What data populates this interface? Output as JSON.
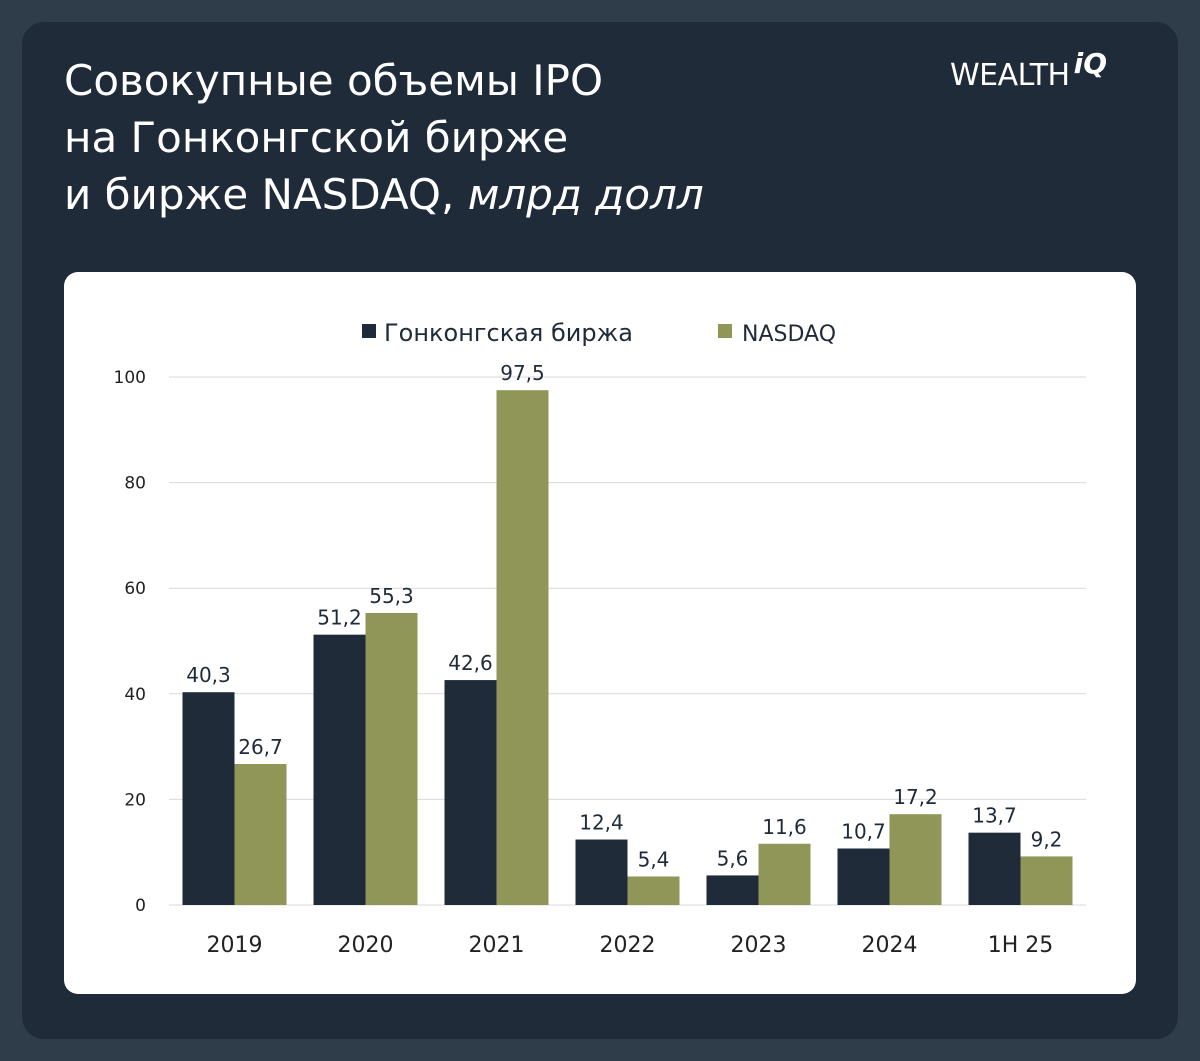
{
  "header": {
    "title_line1": "Совокупные объемы IPO",
    "title_line2": "на Гонконгской бирже",
    "title_line3_main": "и бирже NASDAQ, ",
    "title_line3_unit": "млрд долл",
    "logo_word": "WEALTH",
    "logo_mark": "iQ"
  },
  "colors": {
    "hk": "#1f2b38",
    "nasdaq": "#8f9657",
    "grid": "#d9d9d9"
  },
  "chart_data": {
    "type": "bar",
    "title": "Совокупные объемы IPO на Гонконгской бирже и бирже NASDAQ, млрд долл",
    "categories": [
      "2019",
      "2020",
      "2021",
      "2022",
      "2023",
      "2024",
      "1H 25"
    ],
    "series": [
      {
        "name": "Гонконгская биржа",
        "values": [
          40.3,
          51.2,
          42.6,
          12.4,
          5.6,
          10.7,
          13.7
        ],
        "labels": [
          "40,3",
          "51,2",
          "42,6",
          "12,4",
          "5,6",
          "10,7",
          "13,7"
        ]
      },
      {
        "name": "NASDAQ",
        "values": [
          26.7,
          55.3,
          97.5,
          5.4,
          11.6,
          17.2,
          9.2
        ],
        "labels": [
          "26,7",
          "55,3",
          "97,5",
          "5,4",
          "11,6",
          "17,2",
          "9,2"
        ]
      }
    ],
    "yticks": [
      "0",
      "20",
      "40",
      "60",
      "80",
      "100"
    ],
    "ylim": [
      0,
      100
    ],
    "grid": true,
    "legend": "top-center",
    "xlabel": "",
    "ylabel": ""
  }
}
